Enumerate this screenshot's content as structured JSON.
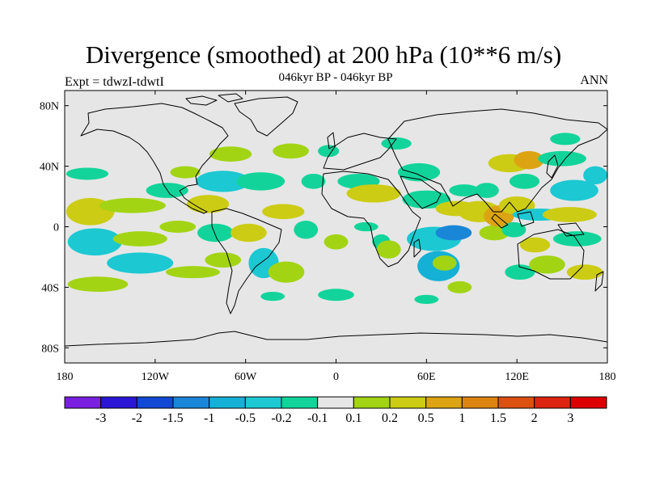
{
  "title": "Divergence (smoothed) at 200 hPa (10**6 m/s)",
  "subtitle": "046kyr BP - 046kyr BP",
  "left_label": "Expt = tdwzI-tdwtI",
  "right_label": "ANN",
  "map": {
    "projection": "cylindrical equidistant",
    "background_color": "#e6e6e6",
    "coastline_color": "#000000",
    "lon_range": [
      -180,
      180
    ],
    "lat_range": [
      -90,
      90
    ],
    "x_ticks": [
      {
        "lon": -180,
        "label": "180"
      },
      {
        "lon": -120,
        "label": "120W"
      },
      {
        "lon": -60,
        "label": "60W"
      },
      {
        "lon": 0,
        "label": "0"
      },
      {
        "lon": 60,
        "label": "60E"
      },
      {
        "lon": 120,
        "label": "120E"
      },
      {
        "lon": 180,
        "label": "180"
      }
    ],
    "y_ticks": [
      {
        "lat": 80,
        "label": "80N"
      },
      {
        "lat": 40,
        "label": "40N"
      },
      {
        "lat": 0,
        "label": "0"
      },
      {
        "lat": -40,
        "label": "40S"
      },
      {
        "lat": -80,
        "label": "80S"
      }
    ]
  },
  "colorbar": {
    "labels": [
      "-3",
      "-2",
      "-1.5",
      "-1",
      "-0.5",
      "-0.2",
      "-0.1",
      "0.1",
      "0.2",
      "0.5",
      "1",
      "1.5",
      "2",
      "3"
    ],
    "colors": [
      "#7a1fe0",
      "#2b16d6",
      "#1148d4",
      "#1a86d8",
      "#14b0d6",
      "#1cc8d2",
      "#12d49a",
      "#e6e6e6",
      "#a2d414",
      "#cccc14",
      "#dca412",
      "#dc8410",
      "#dc5010",
      "#dc2410",
      "#dc0000"
    ]
  },
  "chart_data": {
    "type": "heatmap",
    "title": "Divergence (smoothed) at 200 hPa (10**6 m/s)",
    "subtitle": "046kyr BP - 046kyr BP",
    "levels": [
      -3,
      -2,
      -1.5,
      -1,
      -0.5,
      -0.2,
      -0.1,
      0.1,
      0.2,
      0.5,
      1,
      1.5,
      2,
      3
    ],
    "features": [
      {
        "lon": -165,
        "lat": 35,
        "rx": 14,
        "ry": 4,
        "value": -0.15
      },
      {
        "lon": -163,
        "lat": 10,
        "rx": 16,
        "ry": 9,
        "value": 0.35
      },
      {
        "lon": -160,
        "lat": -10,
        "rx": 18,
        "ry": 9,
        "value": -0.3
      },
      {
        "lon": -158,
        "lat": -38,
        "rx": 20,
        "ry": 5,
        "value": 0.15
      },
      {
        "lon": -135,
        "lat": 14,
        "rx": 22,
        "ry": 5,
        "value": 0.15
      },
      {
        "lon": -130,
        "lat": -8,
        "rx": 18,
        "ry": 5,
        "value": 0.15
      },
      {
        "lon": -130,
        "lat": -24,
        "rx": 22,
        "ry": 7,
        "value": -0.3
      },
      {
        "lon": -112,
        "lat": 24,
        "rx": 14,
        "ry": 5,
        "value": -0.15
      },
      {
        "lon": -105,
        "lat": 0,
        "rx": 12,
        "ry": 4,
        "value": 0.15
      },
      {
        "lon": -100,
        "lat": 36,
        "rx": 10,
        "ry": 4,
        "value": 0.15
      },
      {
        "lon": -95,
        "lat": -30,
        "rx": 18,
        "ry": 4,
        "value": 0.15
      },
      {
        "lon": -85,
        "lat": 15,
        "rx": 14,
        "ry": 6,
        "value": 0.35
      },
      {
        "lon": -80,
        "lat": -4,
        "rx": 12,
        "ry": 6,
        "value": -0.15
      },
      {
        "lon": -75,
        "lat": 30,
        "rx": 18,
        "ry": 7,
        "value": -0.3
      },
      {
        "lon": -75,
        "lat": -22,
        "rx": 12,
        "ry": 5,
        "value": 0.15
      },
      {
        "lon": -70,
        "lat": 48,
        "rx": 14,
        "ry": 5,
        "value": 0.15
      },
      {
        "lon": -58,
        "lat": -4,
        "rx": 12,
        "ry": 6,
        "value": 0.35
      },
      {
        "lon": -50,
        "lat": 30,
        "rx": 16,
        "ry": 6,
        "value": -0.15
      },
      {
        "lon": -48,
        "lat": -24,
        "rx": 10,
        "ry": 10,
        "value": -0.3
      },
      {
        "lon": -42,
        "lat": -46,
        "rx": 8,
        "ry": 3,
        "value": -0.15
      },
      {
        "lon": -35,
        "lat": 10,
        "rx": 14,
        "ry": 5,
        "value": 0.35
      },
      {
        "lon": -33,
        "lat": -30,
        "rx": 12,
        "ry": 7,
        "value": 0.15
      },
      {
        "lon": -30,
        "lat": 50,
        "rx": 12,
        "ry": 5,
        "value": 0.15
      },
      {
        "lon": -20,
        "lat": -2,
        "rx": 8,
        "ry": 6,
        "value": -0.15
      },
      {
        "lon": -15,
        "lat": 30,
        "rx": 8,
        "ry": 5,
        "value": -0.15
      },
      {
        "lon": -5,
        "lat": 50,
        "rx": 7,
        "ry": 4,
        "value": -0.15
      },
      {
        "lon": 0,
        "lat": -45,
        "rx": 12,
        "ry": 4,
        "value": -0.15
      },
      {
        "lon": 0,
        "lat": -10,
        "rx": 8,
        "ry": 5,
        "value": 0.15
      },
      {
        "lon": 15,
        "lat": 30,
        "rx": 14,
        "ry": 5,
        "value": -0.15
      },
      {
        "lon": 20,
        "lat": 0,
        "rx": 8,
        "ry": 3,
        "value": -0.15
      },
      {
        "lon": 25,
        "lat": 22,
        "rx": 18,
        "ry": 6,
        "value": 0.35
      },
      {
        "lon": 30,
        "lat": -10,
        "rx": 6,
        "ry": 5,
        "value": -0.15
      },
      {
        "lon": 35,
        "lat": -15,
        "rx": 8,
        "ry": 6,
        "value": 0.15
      },
      {
        "lon": 40,
        "lat": 55,
        "rx": 10,
        "ry": 4,
        "value": -0.15
      },
      {
        "lon": 55,
        "lat": 36,
        "rx": 14,
        "ry": 6,
        "value": -0.15
      },
      {
        "lon": 60,
        "lat": 18,
        "rx": 16,
        "ry": 6,
        "value": -0.15
      },
      {
        "lon": 60,
        "lat": -48,
        "rx": 8,
        "ry": 3,
        "value": -0.15
      },
      {
        "lon": 65,
        "lat": -8,
        "rx": 18,
        "ry": 8,
        "value": -0.3
      },
      {
        "lon": 68,
        "lat": -26,
        "rx": 14,
        "ry": 10,
        "value": -0.7
      },
      {
        "lon": 72,
        "lat": -24,
        "rx": 8,
        "ry": 5,
        "value": 0.15
      },
      {
        "lon": 78,
        "lat": -4,
        "rx": 12,
        "ry": 5,
        "value": -1.2
      },
      {
        "lon": 80,
        "lat": 12,
        "rx": 14,
        "ry": 5,
        "value": 0.35
      },
      {
        "lon": 82,
        "lat": -40,
        "rx": 8,
        "ry": 4,
        "value": 0.15
      },
      {
        "lon": 85,
        "lat": 24,
        "rx": 10,
        "ry": 4,
        "value": -0.15
      },
      {
        "lon": 95,
        "lat": 10,
        "rx": 14,
        "ry": 7,
        "value": 0.35
      },
      {
        "lon": 100,
        "lat": 24,
        "rx": 8,
        "ry": 5,
        "value": -0.15
      },
      {
        "lon": 105,
        "lat": -4,
        "rx": 10,
        "ry": 5,
        "value": 0.15
      },
      {
        "lon": 108,
        "lat": 7,
        "rx": 10,
        "ry": 7,
        "value": 0.7
      },
      {
        "lon": 115,
        "lat": 42,
        "rx": 14,
        "ry": 6,
        "value": 0.35
      },
      {
        "lon": 118,
        "lat": -2,
        "rx": 8,
        "ry": 5,
        "value": -0.15
      },
      {
        "lon": 120,
        "lat": 14,
        "rx": 12,
        "ry": 6,
        "value": 0.35
      },
      {
        "lon": 122,
        "lat": -30,
        "rx": 10,
        "ry": 5,
        "value": -0.15
      },
      {
        "lon": 125,
        "lat": 30,
        "rx": 10,
        "ry": 5,
        "value": -0.15
      },
      {
        "lon": 128,
        "lat": 44,
        "rx": 10,
        "ry": 6,
        "value": 0.7
      },
      {
        "lon": 132,
        "lat": -12,
        "rx": 10,
        "ry": 5,
        "value": 0.35
      },
      {
        "lon": 135,
        "lat": 8,
        "rx": 18,
        "ry": 4,
        "value": -0.3
      },
      {
        "lon": 140,
        "lat": -25,
        "rx": 12,
        "ry": 6,
        "value": 0.15
      },
      {
        "lon": 150,
        "lat": 45,
        "rx": 16,
        "ry": 5,
        "value": -0.15
      },
      {
        "lon": 152,
        "lat": 58,
        "rx": 10,
        "ry": 4,
        "value": -0.15
      },
      {
        "lon": 155,
        "lat": 8,
        "rx": 18,
        "ry": 5,
        "value": 0.35
      },
      {
        "lon": 158,
        "lat": 24,
        "rx": 16,
        "ry": 7,
        "value": -0.3
      },
      {
        "lon": 160,
        "lat": -8,
        "rx": 16,
        "ry": 5,
        "value": -0.15
      },
      {
        "lon": 165,
        "lat": -30,
        "rx": 12,
        "ry": 5,
        "value": 0.35
      },
      {
        "lon": 172,
        "lat": 34,
        "rx": 8,
        "ry": 6,
        "value": -0.3
      }
    ]
  }
}
